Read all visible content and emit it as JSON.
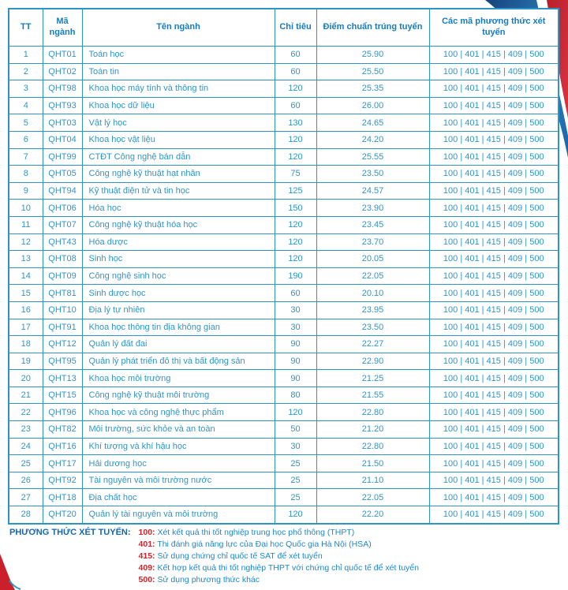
{
  "colors": {
    "table_border": "#2e93c6",
    "header_text": "#147dc2",
    "body_text": "#2e96c9",
    "legend_label": "#1568ad",
    "legend_code_red": "#d2232a",
    "legend_desc_blue": "#1e88c9",
    "ribbon_blue_dark": "#16427c",
    "ribbon_blue": "#2e86c1",
    "ribbon_red": "#c9202c"
  },
  "table": {
    "headers": [
      "TT",
      "Mã ngành",
      "Tên ngành",
      "Chỉ tiêu",
      "Điểm chuẩn trúng tuyển",
      "Các mã phương thức xét tuyển"
    ],
    "rows": [
      {
        "tt": "1",
        "code": "QHT01",
        "name": "Toán học",
        "quota": "60",
        "score": "25.90",
        "methods": "100 | 401 | 415 | 409 | 500"
      },
      {
        "tt": "2",
        "code": "QHT02",
        "name": "Toán tin",
        "quota": "60",
        "score": "25.50",
        "methods": "100 | 401 | 415 | 409 | 500"
      },
      {
        "tt": "3",
        "code": "QHT98",
        "name": "Khoa học máy tính và thông tin",
        "quota": "120",
        "score": "25.35",
        "methods": "100 | 401 | 415 | 409 | 500"
      },
      {
        "tt": "4",
        "code": "QHT93",
        "name": "Khoa học dữ liệu",
        "quota": "60",
        "score": "26.00",
        "methods": "100 | 401 | 415 | 409 | 500"
      },
      {
        "tt": "5",
        "code": "QHT03",
        "name": "Vật lý học",
        "quota": "130",
        "score": "24.65",
        "methods": "100 | 401 | 415 | 409 | 500"
      },
      {
        "tt": "6",
        "code": "QHT04",
        "name": "Khoa học vật liệu",
        "quota": "120",
        "score": "24.20",
        "methods": "100 | 401 | 415 | 409 | 500"
      },
      {
        "tt": "7",
        "code": "QHT99",
        "name": "CTĐT Công nghệ bán dẫn",
        "quota": "120",
        "score": "25.55",
        "methods": "100 | 401 | 415 | 409 | 500"
      },
      {
        "tt": "8",
        "code": "QHT05",
        "name": "Công nghệ kỹ thuật hạt nhân",
        "quota": "75",
        "score": "23.50",
        "methods": "100 | 401 | 415 | 409 | 500"
      },
      {
        "tt": "9",
        "code": "QHT94",
        "name": "Kỹ thuật điện tử và tin học",
        "quota": "125",
        "score": "24.57",
        "methods": "100 | 401 | 415 | 409 | 500"
      },
      {
        "tt": "10",
        "code": "QHT06",
        "name": "Hóa học",
        "quota": "150",
        "score": "23.90",
        "methods": "100 | 401 | 415 | 409 | 500"
      },
      {
        "tt": "11",
        "code": "QHT07",
        "name": "Công nghệ kỹ thuật hóa học",
        "quota": "120",
        "score": "23.45",
        "methods": "100 | 401 | 415 | 409 | 500"
      },
      {
        "tt": "12",
        "code": "QHT43",
        "name": "Hóa dược",
        "quota": "120",
        "score": "23.70",
        "methods": "100 | 401 | 415 | 409 | 500"
      },
      {
        "tt": "13",
        "code": "QHT08",
        "name": "Sinh học",
        "quota": "120",
        "score": "20.05",
        "methods": "100 | 401 | 415 | 409 | 500"
      },
      {
        "tt": "14",
        "code": "QHT09",
        "name": "Công nghệ sinh học",
        "quota": "190",
        "score": "22.05",
        "methods": "100 | 401 | 415 | 409 | 500"
      },
      {
        "tt": "15",
        "code": "QHT81",
        "name": "Sinh dược học",
        "quota": "60",
        "score": "20.10",
        "methods": "100 | 401 | 415 | 409 | 500"
      },
      {
        "tt": "16",
        "code": "QHT10",
        "name": "Địa lý tự nhiên",
        "quota": "30",
        "score": "23.95",
        "methods": "100 | 401 | 415 | 409 | 500"
      },
      {
        "tt": "17",
        "code": "QHT91",
        "name": "Khoa học thông tin địa không gian",
        "quota": "30",
        "score": "23.50",
        "methods": "100 | 401 | 415 | 409 | 500"
      },
      {
        "tt": "18",
        "code": "QHT12",
        "name": "Quản lý đất đai",
        "quota": "90",
        "score": "22.27",
        "methods": "100 | 401 | 415 | 409 | 500"
      },
      {
        "tt": "19",
        "code": "QHT95",
        "name": "Quản lý phát triển đô thị và bất động sản",
        "quota": "90",
        "score": "22.90",
        "methods": "100 | 401 | 415 | 409 | 500"
      },
      {
        "tt": "20",
        "code": "QHT13",
        "name": "Khoa học môi trường",
        "quota": "90",
        "score": "21.25",
        "methods": "100 | 401 | 415 | 409 | 500"
      },
      {
        "tt": "21",
        "code": "QHT15",
        "name": "Công nghệ kỹ thuật môi trường",
        "quota": "80",
        "score": "21.55",
        "methods": "100 | 401 | 415 | 409 | 500"
      },
      {
        "tt": "22",
        "code": "QHT96",
        "name": "Khoa học và công nghệ thực phẩm",
        "quota": "120",
        "score": "22.80",
        "methods": "100 | 401 | 415 | 409 | 500"
      },
      {
        "tt": "23",
        "code": "QHT82",
        "name": "Môi trường, sức khỏe và an toàn",
        "quota": "50",
        "score": "21.20",
        "methods": "100 | 401 | 415 | 409 | 500"
      },
      {
        "tt": "24",
        "code": "QHT16",
        "name": "Khí tượng và khí hậu học",
        "quota": "30",
        "score": "22.80",
        "methods": "100 | 401 | 415 | 409 | 500"
      },
      {
        "tt": "25",
        "code": "QHT17",
        "name": "Hải dương học",
        "quota": "25",
        "score": "21.50",
        "methods": "100 | 401 | 415 | 409 | 500"
      },
      {
        "tt": "26",
        "code": "QHT92",
        "name": "Tài nguyên và môi trường nước",
        "quota": "25",
        "score": "21.10",
        "methods": "100 | 401 | 415 | 409 | 500"
      },
      {
        "tt": "27",
        "code": "QHT18",
        "name": "Địa chất học",
        "quota": "25",
        "score": "22.05",
        "methods": "100 | 401 | 415 | 409 | 500"
      },
      {
        "tt": "28",
        "code": "QHT20",
        "name": "Quản lý tài nguyên và môi trường",
        "quota": "120",
        "score": "22.20",
        "methods": "100 | 401 | 415 | 409 | 500"
      }
    ]
  },
  "methods_legend": {
    "label": "PHƯƠNG THỨC XÉT TUYỂN:",
    "items": [
      {
        "code": "100:",
        "desc": "Xét kết quả thi tốt nghiệp trung học phổ thông (THPT)"
      },
      {
        "code": "401:",
        "desc": "Thi đánh giá năng lực của Đại học Quốc gia Hà Nội (HSA)"
      },
      {
        "code": "415:",
        "desc": "Sử dụng chứng chỉ quốc tế SAT để xét tuyển"
      },
      {
        "code": "409:",
        "desc": "Kết hợp kết quả thi tốt nghiệp THPT với chứng chỉ quốc tế để xét tuyển"
      },
      {
        "code": "500:",
        "desc": "Sử dụng phương thức khác"
      }
    ]
  }
}
